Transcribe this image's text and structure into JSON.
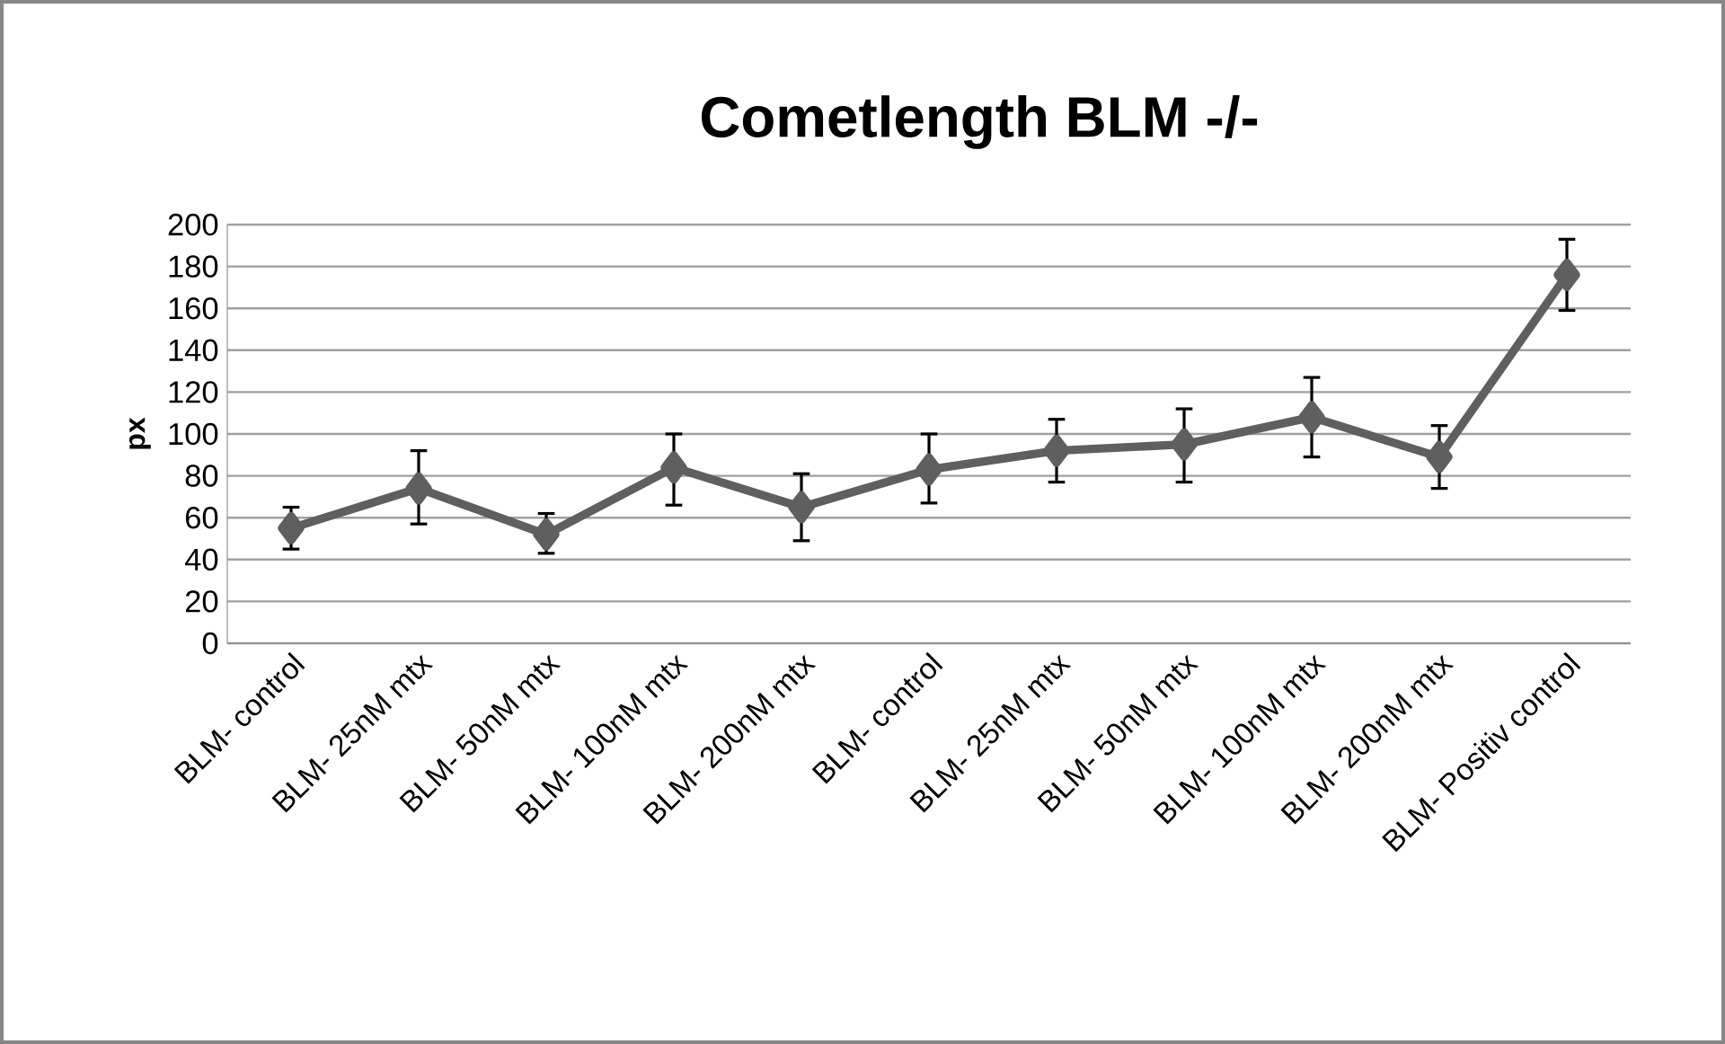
{
  "chart_data": {
    "type": "line",
    "title": "Cometlength BLM -/-",
    "ylabel": "px",
    "categories": [
      "BLM- control",
      "BLM- 25nM mtx",
      "BLM- 50nM mtx",
      "BLM- 100nM mtx",
      "BLM- 200nM mtx",
      "BLM- control",
      "BLM- 25nM mtx",
      "BLM- 50nM mtx",
      "BLM- 100nM mtx",
      "BLM- 200nM mtx",
      "BLM- Positiv control"
    ],
    "series": [
      {
        "color": "#5f5f5f",
        "values": [
          55,
          74,
          52,
          84,
          65,
          83,
          92,
          95,
          108,
          89,
          176
        ],
        "errors": [
          [
            45,
            65
          ],
          [
            57,
            92
          ],
          [
            43,
            62
          ],
          [
            66,
            100
          ],
          [
            49,
            81
          ],
          [
            67,
            100
          ],
          [
            77,
            107
          ],
          [
            77,
            112
          ],
          [
            89,
            127
          ],
          [
            74,
            104
          ],
          [
            159,
            193
          ]
        ]
      }
    ],
    "ylim": [
      0,
      200
    ],
    "yticks": [
      0,
      20,
      40,
      60,
      80,
      100,
      120,
      140,
      160,
      180,
      200
    ],
    "grid": "y",
    "marker": "diamond",
    "line_style": "solid"
  }
}
